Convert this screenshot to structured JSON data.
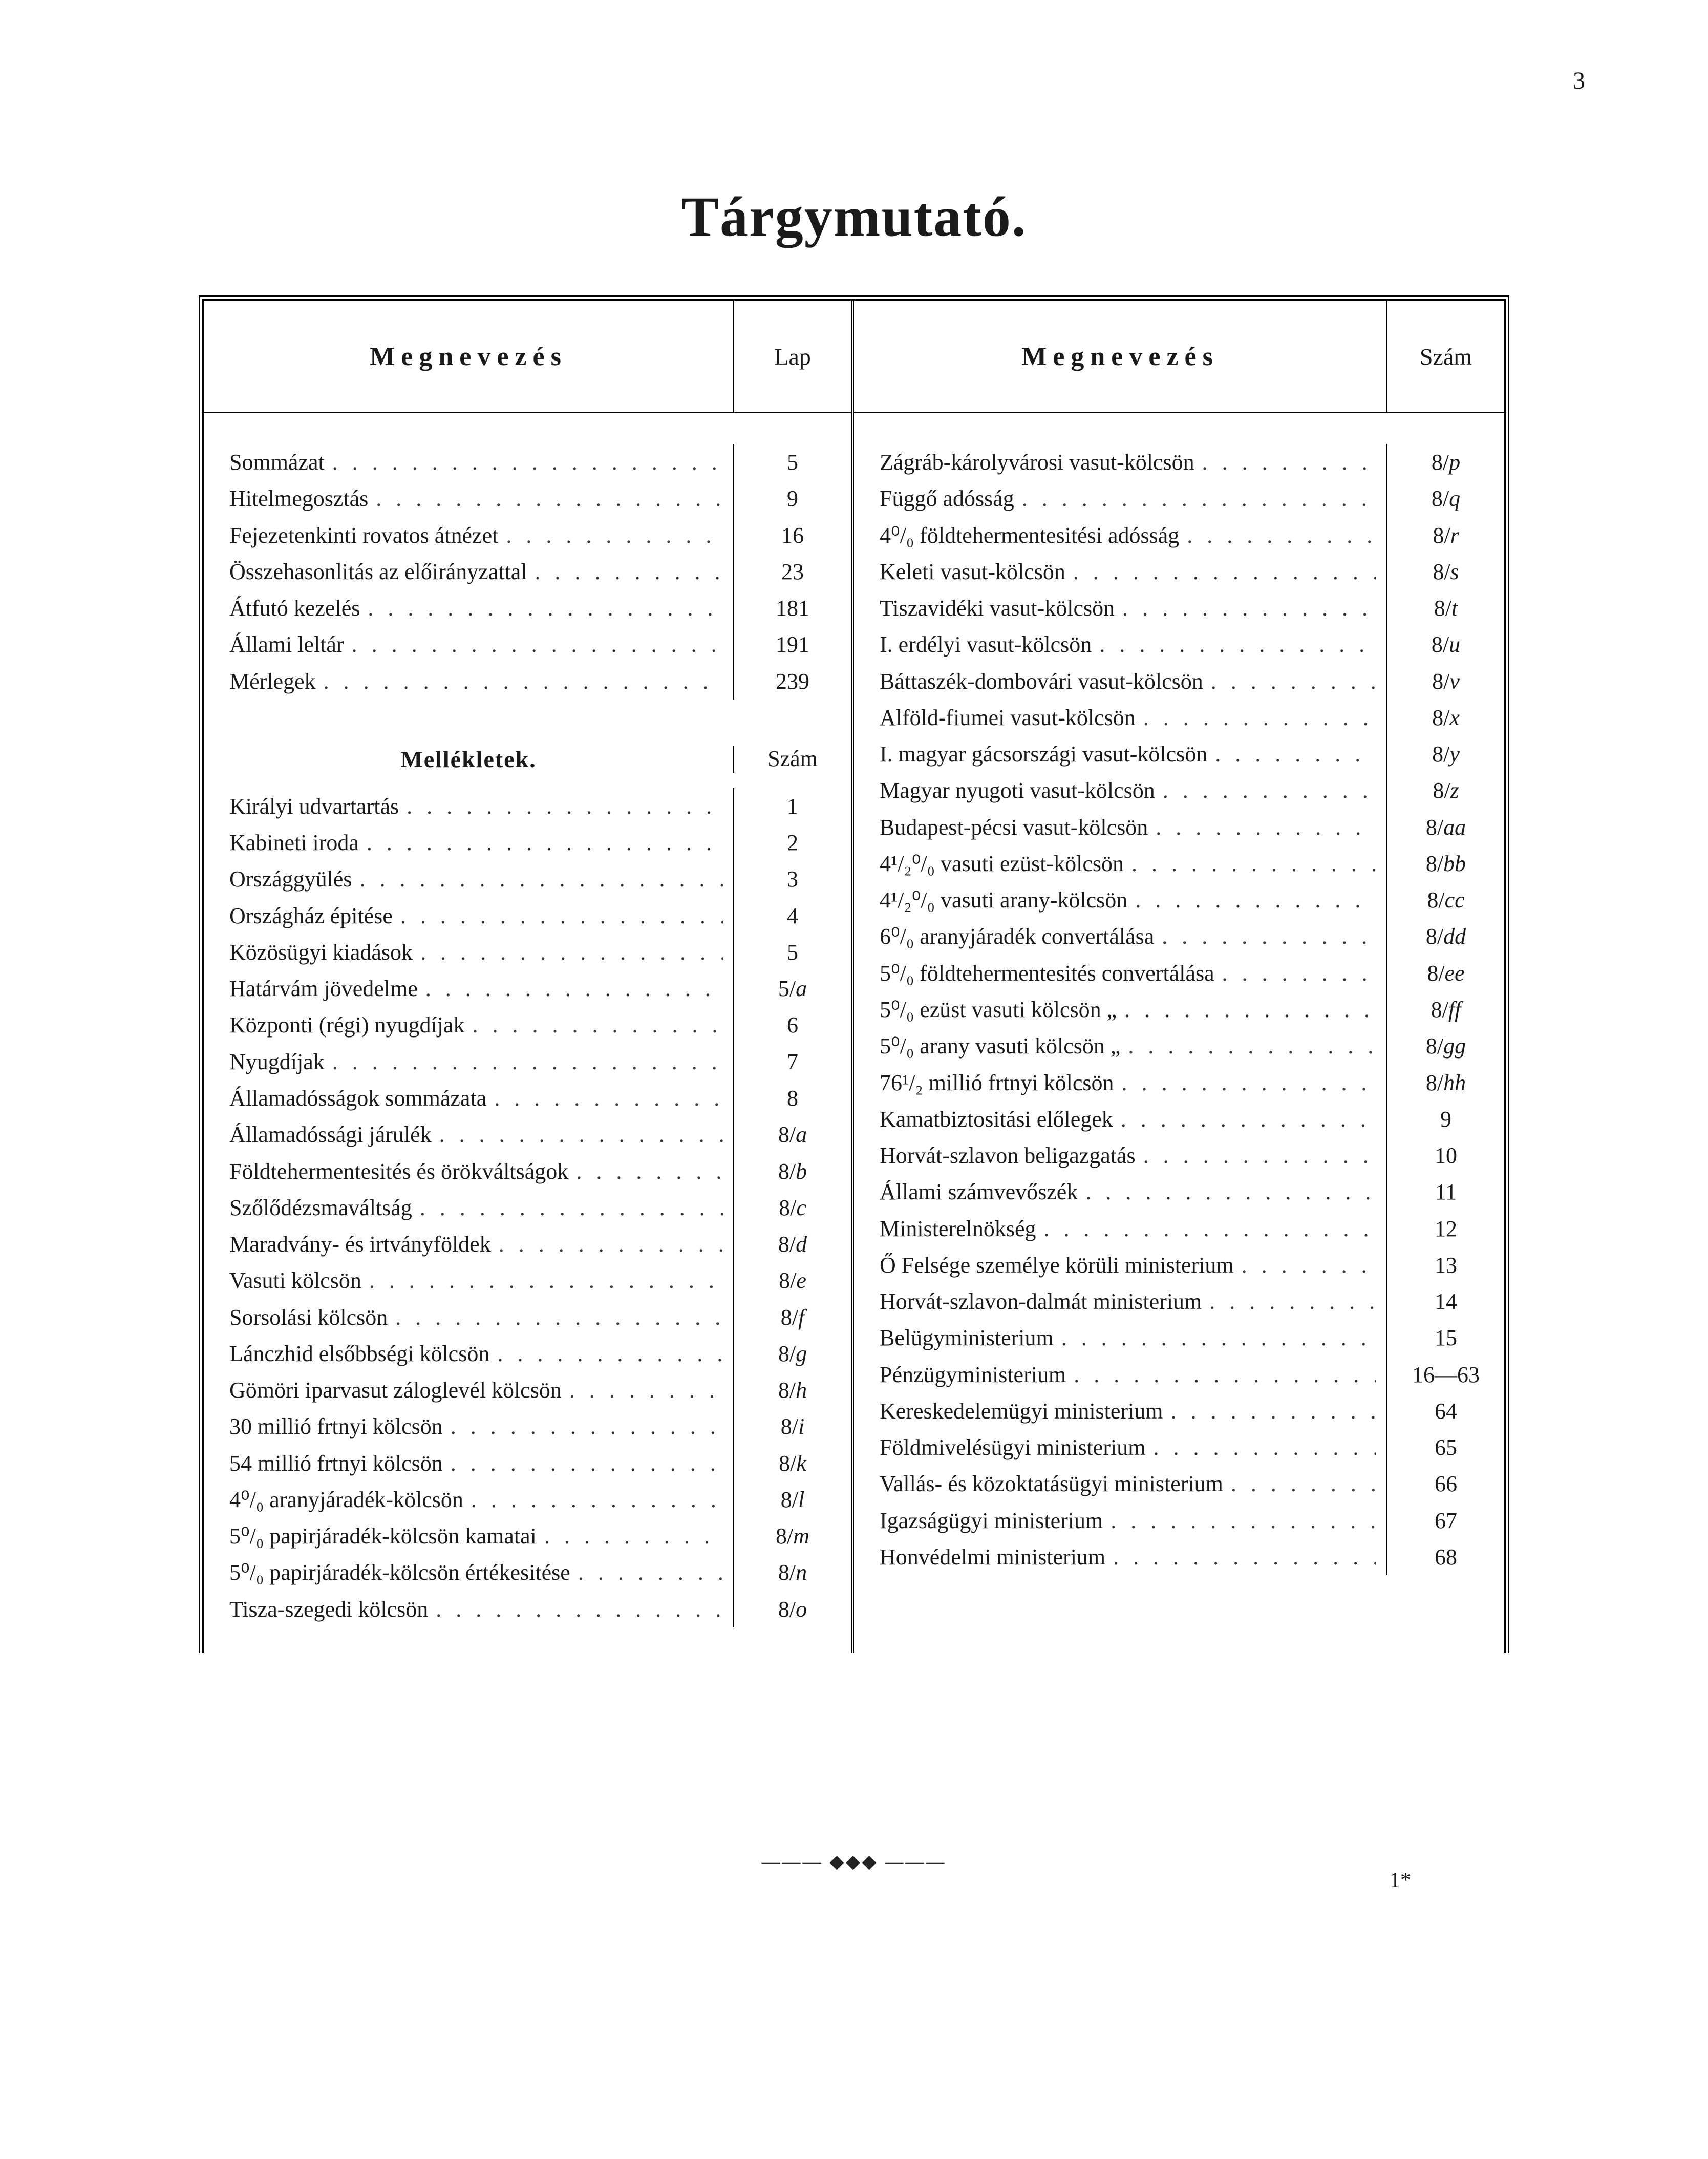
{
  "page_number": "3",
  "title": "Tárgymutató.",
  "footer_mark": "1*",
  "ornament": "——— ◆◆◆ ———",
  "left": {
    "header_name": "Megnevezés",
    "header_page": "Lap",
    "sub_header_name": "Mellékletek.",
    "sub_header_page": "Szám",
    "rows1": [
      {
        "name": "Sommázat",
        "page": "5"
      },
      {
        "name": "Hitelmegosztás",
        "page": "9"
      },
      {
        "name": "Fejezetenkinti rovatos átnézet",
        "page": "16"
      },
      {
        "name": "Összehasonlitás az előirányzattal",
        "page": "23"
      },
      {
        "name": "Átfutó kezelés",
        "page": "181"
      },
      {
        "name": "Állami leltár",
        "page": "191"
      },
      {
        "name": "Mérlegek",
        "page": "239"
      }
    ],
    "rows2": [
      {
        "name": "Királyi udvartartás",
        "page": "1"
      },
      {
        "name": "Kabineti iroda",
        "page": "2"
      },
      {
        "name": "Országgyülés",
        "page": "3"
      },
      {
        "name": "Országház épitése",
        "page": "4"
      },
      {
        "name": "Közösügyi kiadások",
        "page": "5"
      },
      {
        "name": "Határvám jövedelme",
        "page": "5/a",
        "italic": true
      },
      {
        "name": "Központi (régi) nyugdíjak",
        "page": "6"
      },
      {
        "name": "Nyugdíjak",
        "page": "7"
      },
      {
        "name": "Államadósságok sommázata",
        "page": "8"
      },
      {
        "name": "Államadóssági járulék",
        "page": "8/a",
        "italic": true
      },
      {
        "name": "Földtehermentesités és örökváltságok",
        "page": "8/b",
        "italic": true
      },
      {
        "name": "Szőlődézsmaváltság",
        "page": "8/c",
        "italic": true
      },
      {
        "name": "Maradvány- és irtványföldek",
        "page": "8/d",
        "italic": true
      },
      {
        "name": "Vasuti kölcsön",
        "page": "8/e",
        "italic": true
      },
      {
        "name": "Sorsolási kölcsön",
        "page": "8/f",
        "italic": true
      },
      {
        "name": "Lánczhid elsőbbségi kölcsön",
        "page": "8/g",
        "italic": true
      },
      {
        "name": "Gömöri iparvasut záloglevél kölcsön",
        "page": "8/h",
        "italic": true
      },
      {
        "name": "30 millió frtnyi kölcsön",
        "page": "8/i",
        "italic": true
      },
      {
        "name": "54 millió frtnyi kölcsön",
        "page": "8/k",
        "italic": true
      },
      {
        "name": "4⁰/₀ aranyjáradék-kölcsön",
        "page": "8/l",
        "italic": true
      },
      {
        "name": "5⁰/₀ papirjáradék-kölcsön kamatai",
        "page": "8/m",
        "italic": true
      },
      {
        "name": "5⁰/₀ papirjáradék-kölcsön értékesitése",
        "page": "8/n",
        "italic": true
      },
      {
        "name": "Tisza-szegedi kölcsön",
        "page": "8/o",
        "italic": true
      }
    ]
  },
  "right": {
    "header_name": "Megnevezés",
    "header_page": "Szám",
    "rows": [
      {
        "name": "Zágráb-károlyvárosi vasut-kölcsön",
        "page": "8/p",
        "italic": true
      },
      {
        "name": "Függő adósság",
        "page": "8/q",
        "italic": true
      },
      {
        "name": "4⁰/₀ földtehermentesitési adósság",
        "page": "8/r",
        "italic": true
      },
      {
        "name": "Keleti vasut-kölcsön",
        "page": "8/s",
        "italic": true
      },
      {
        "name": "Tiszavidéki vasut-kölcsön",
        "page": "8/t",
        "italic": true
      },
      {
        "name": "I. erdélyi vasut-kölcsön",
        "page": "8/u",
        "italic": true
      },
      {
        "name": "Báttaszék-dombovári vasut-kölcsön",
        "page": "8/v",
        "italic": true
      },
      {
        "name": "Alföld-fiumei vasut-kölcsön",
        "page": "8/x",
        "italic": true
      },
      {
        "name": "I. magyar gácsországi vasut-kölcsön",
        "page": "8/y",
        "italic": true
      },
      {
        "name": "Magyar nyugoti vasut-kölcsön",
        "page": "8/z",
        "italic": true
      },
      {
        "name": "Budapest-pécsi vasut-kölcsön",
        "page": "8/aa",
        "italic": true
      },
      {
        "name": "4¹/₂⁰/₀ vasuti ezüst-kölcsön",
        "page": "8/bb",
        "italic": true
      },
      {
        "name": "4¹/₂⁰/₀ vasuti arany-kölcsön",
        "page": "8/cc",
        "italic": true
      },
      {
        "name": "6⁰/₀ aranyjáradék convertálása",
        "page": "8/dd",
        "italic": true
      },
      {
        "name": "5⁰/₀ földtehermentesités convertálása",
        "page": "8/ee",
        "italic": true
      },
      {
        "name": "5⁰/₀ ezüst vasuti kölcsön     „",
        "page": "8/ff",
        "italic": true
      },
      {
        "name": "5⁰/₀ arany vasuti kölcsön     „",
        "page": "8/gg",
        "italic": true
      },
      {
        "name": "76¹/₂ millió frtnyi kölcsön",
        "page": "8/hh",
        "italic": true
      },
      {
        "name": "Kamatbiztositási előlegek",
        "page": "9"
      },
      {
        "name": "Horvát-szlavon beligazgatás",
        "page": "10"
      },
      {
        "name": "Állami számvevőszék",
        "page": "11"
      },
      {
        "name": "Ministerelnökség",
        "page": "12"
      },
      {
        "name": "Ő Felsége személye körüli ministerium",
        "page": "13"
      },
      {
        "name": "Horvát-szlavon-dalmát ministerium",
        "page": "14"
      },
      {
        "name": "Belügyministerium",
        "page": "15"
      },
      {
        "name": "Pénzügyministerium",
        "page": "16—63"
      },
      {
        "name": "Kereskedelemügyi ministerium",
        "page": "64"
      },
      {
        "name": "Földmivelésügyi ministerium",
        "page": "65"
      },
      {
        "name": "Vallás- és közoktatásügyi ministerium",
        "page": "66"
      },
      {
        "name": "Igazságügyi ministerium",
        "page": "67"
      },
      {
        "name": "Honvédelmi ministerium",
        "page": "68"
      }
    ]
  }
}
